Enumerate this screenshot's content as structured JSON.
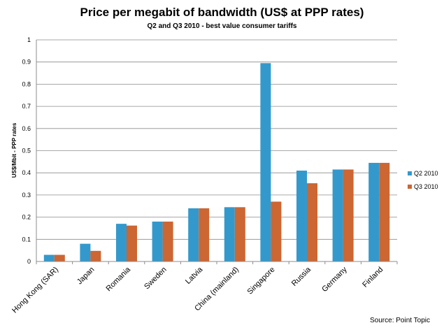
{
  "chart_data": {
    "type": "bar",
    "title": "Price per megabit of bandwidth (US$ at PPP rates)",
    "subtitle": "Q2 and Q3 2010 - best  value consumer tariffs",
    "xlabel": "",
    "ylabel": "US$/Mbit - PPP rates",
    "ylim": [
      0,
      1
    ],
    "yticks": [
      "0",
      "0.1",
      "0.2",
      "0.3",
      "0.4",
      "0.5",
      "0.6",
      "0.7",
      "0.8",
      "0.9",
      "1"
    ],
    "grid": true,
    "legend_position": "right",
    "categories": [
      "Hong Kong (SAR)",
      "Japan",
      "Romania",
      "Sweden",
      "Latvia",
      "China (mainland)",
      "Singapore",
      "Russia",
      "Germany",
      "Finland"
    ],
    "series": [
      {
        "name": "Q2 2010",
        "color": "#3399cc",
        "values": [
          0.03,
          0.08,
          0.17,
          0.18,
          0.24,
          0.245,
          0.895,
          0.41,
          0.415,
          0.445
        ]
      },
      {
        "name": "Q3 2010",
        "color": "#cc6633",
        "values": [
          0.03,
          0.048,
          0.162,
          0.18,
          0.24,
          0.245,
          0.27,
          0.353,
          0.415,
          0.445
        ]
      }
    ],
    "source": "Source: Point Topic"
  }
}
